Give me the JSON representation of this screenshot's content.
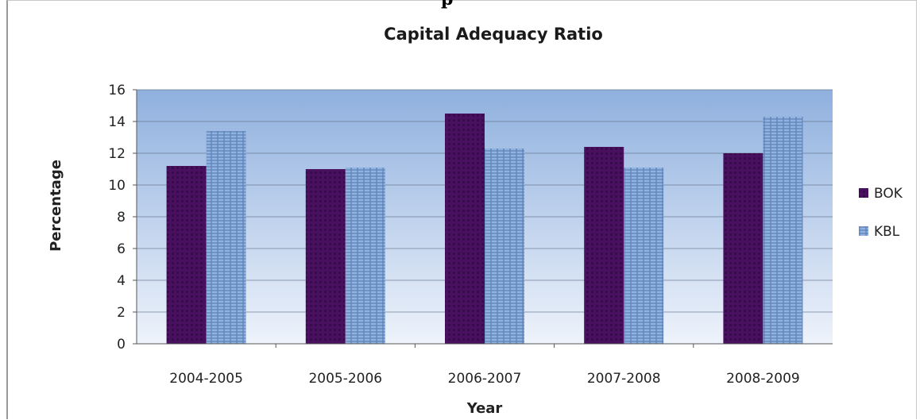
{
  "header_fragment": "p",
  "colors": {
    "bok": "#4a1060",
    "bok_dark": "#2e0640",
    "kbl": "#8fb2de",
    "kbl_dark": "#3d5f9c",
    "plot_top": "#8fb0de",
    "plot_bottom": "#eef3fb",
    "grid": "#5a6a80"
  },
  "chart_data": {
    "type": "bar",
    "title": "Capital Adequacy Ratio",
    "xlabel": "Year",
    "ylabel": "Percentage",
    "categories": [
      "2004-2005",
      "2005-2006",
      "2006-2007",
      "2007-2008",
      "2008-2009"
    ],
    "series": [
      {
        "name": "BOK",
        "values": [
          11.2,
          11.0,
          14.5,
          12.4,
          12.0
        ]
      },
      {
        "name": "KBL",
        "values": [
          13.4,
          11.1,
          12.3,
          11.1,
          14.3
        ]
      }
    ],
    "ylim": [
      0,
      16
    ],
    "yticks": [
      "0",
      "2",
      "4",
      "6",
      "8",
      "10",
      "12",
      "14",
      "16"
    ],
    "grid": true,
    "legend_position": "right"
  }
}
